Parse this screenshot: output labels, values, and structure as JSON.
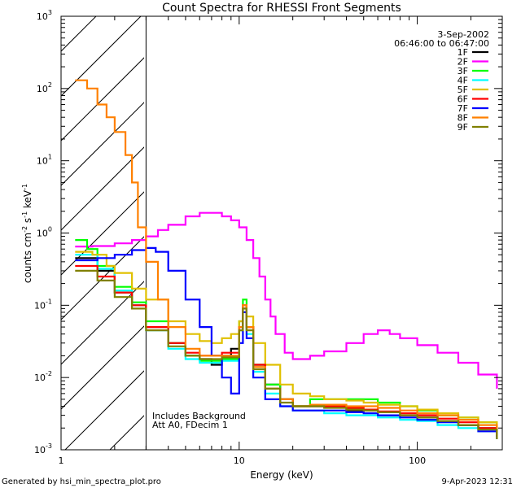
{
  "chart_data": {
    "type": "line",
    "title": "Count Spectra for RHESSI Front Segments",
    "xlabel": "Energy (keV)",
    "ylabel_main": "counts cm",
    "ylabel_exp1": "-2",
    "ylabel_mid": " s",
    "ylabel_exp2": "-1",
    "ylabel_end": " keV",
    "ylabel_exp3": "-1",
    "xscale": "log",
    "yscale": "log",
    "xlim": [
      1,
      300
    ],
    "ylim": [
      0.001,
      1000
    ],
    "hatch_region": [
      1,
      3
    ],
    "x_ticks": [
      {
        "value": 1,
        "label": "1"
      },
      {
        "value": 10,
        "label": "10"
      },
      {
        "value": 100,
        "label": "100"
      }
    ],
    "y_ticks": [
      {
        "value": 0.001,
        "base": "10",
        "exp": "-3"
      },
      {
        "value": 0.01,
        "base": "10",
        "exp": "-2"
      },
      {
        "value": 0.1,
        "base": "10",
        "exp": "-1"
      },
      {
        "value": 1,
        "base": "10",
        "exp": "0"
      },
      {
        "value": 10,
        "base": "10",
        "exp": "1"
      },
      {
        "value": 100,
        "base": "10",
        "exp": "2"
      },
      {
        "value": 1000,
        "base": "10",
        "exp": "3"
      }
    ],
    "date": "3-Sep-2002",
    "time_range": "06:46:00 to 06:47:00",
    "annotations": [
      "Includes Background",
      "Att A0, FDecim 1"
    ],
    "series": [
      {
        "name": "1F",
        "color": "#000000",
        "points": [
          [
            1.2,
            0.45
          ],
          [
            1.6,
            0.3
          ],
          [
            2,
            0.15
          ],
          [
            2.5,
            0.1
          ],
          [
            3,
            0.05
          ],
          [
            4,
            0.03
          ],
          [
            5,
            0.02
          ],
          [
            6,
            0.018
          ],
          [
            7,
            0.015
          ],
          [
            8,
            0.02
          ],
          [
            9,
            0.025
          ],
          [
            10,
            0.05
          ],
          [
            10.5,
            0.09
          ],
          [
            11,
            0.05
          ],
          [
            12,
            0.015
          ],
          [
            14,
            0.008
          ],
          [
            17,
            0.005
          ],
          [
            20,
            0.004
          ],
          [
            25,
            0.004
          ],
          [
            30,
            0.004
          ],
          [
            40,
            0.0035
          ],
          [
            50,
            0.0035
          ],
          [
            60,
            0.003
          ],
          [
            80,
            0.003
          ],
          [
            100,
            0.0028
          ],
          [
            130,
            0.0025
          ],
          [
            170,
            0.0022
          ],
          [
            220,
            0.002
          ],
          [
            280,
            0.0015
          ]
        ]
      },
      {
        "name": "2F",
        "color": "#ff00ff",
        "points": [
          [
            1.2,
            0.65
          ],
          [
            1.5,
            0.66
          ],
          [
            2,
            0.72
          ],
          [
            2.5,
            0.8
          ],
          [
            3,
            0.9
          ],
          [
            3.5,
            1.1
          ],
          [
            4,
            1.3
          ],
          [
            5,
            1.7
          ],
          [
            6,
            1.9
          ],
          [
            7,
            1.9
          ],
          [
            8,
            1.7
          ],
          [
            9,
            1.5
          ],
          [
            10,
            1.2
          ],
          [
            11,
            0.8
          ],
          [
            12,
            0.45
          ],
          [
            13,
            0.25
          ],
          [
            14,
            0.12
          ],
          [
            15,
            0.07
          ],
          [
            16,
            0.04
          ],
          [
            18,
            0.022
          ],
          [
            20,
            0.018
          ],
          [
            25,
            0.02
          ],
          [
            30,
            0.023
          ],
          [
            40,
            0.03
          ],
          [
            50,
            0.04
          ],
          [
            60,
            0.045
          ],
          [
            70,
            0.04
          ],
          [
            80,
            0.035
          ],
          [
            100,
            0.028
          ],
          [
            130,
            0.022
          ],
          [
            170,
            0.016
          ],
          [
            220,
            0.011
          ],
          [
            280,
            0.007
          ]
        ]
      },
      {
        "name": "3F",
        "color": "#00ff00",
        "points": [
          [
            1.2,
            0.8
          ],
          [
            1.4,
            0.6
          ],
          [
            1.6,
            0.35
          ],
          [
            2,
            0.18
          ],
          [
            2.5,
            0.11
          ],
          [
            3,
            0.06
          ],
          [
            4,
            0.03
          ],
          [
            5,
            0.02
          ],
          [
            6,
            0.017
          ],
          [
            8,
            0.018
          ],
          [
            10,
            0.06
          ],
          [
            10.5,
            0.12
          ],
          [
            11,
            0.05
          ],
          [
            12,
            0.015
          ],
          [
            14,
            0.008
          ],
          [
            17,
            0.005
          ],
          [
            20,
            0.004
          ],
          [
            25,
            0.005
          ],
          [
            30,
            0.005
          ],
          [
            40,
            0.005
          ],
          [
            50,
            0.005
          ],
          [
            60,
            0.0045
          ],
          [
            80,
            0.004
          ],
          [
            100,
            0.0035
          ],
          [
            130,
            0.003
          ],
          [
            170,
            0.0028
          ],
          [
            220,
            0.0024
          ],
          [
            280,
            0.0018
          ]
        ]
      },
      {
        "name": "4F",
        "color": "#00ffff",
        "points": [
          [
            1.2,
            0.5
          ],
          [
            1.6,
            0.32
          ],
          [
            2,
            0.16
          ],
          [
            2.5,
            0.1
          ],
          [
            3,
            0.045
          ],
          [
            4,
            0.025
          ],
          [
            5,
            0.018
          ],
          [
            6,
            0.016
          ],
          [
            8,
            0.017
          ],
          [
            10,
            0.045
          ],
          [
            10.5,
            0.08
          ],
          [
            11,
            0.04
          ],
          [
            12,
            0.012
          ],
          [
            14,
            0.006
          ],
          [
            17,
            0.004
          ],
          [
            20,
            0.0035
          ],
          [
            25,
            0.0035
          ],
          [
            30,
            0.0032
          ],
          [
            40,
            0.003
          ],
          [
            50,
            0.003
          ],
          [
            60,
            0.0028
          ],
          [
            80,
            0.0026
          ],
          [
            100,
            0.0025
          ],
          [
            130,
            0.0022
          ],
          [
            170,
            0.002
          ],
          [
            220,
            0.0018
          ],
          [
            280,
            0.0014
          ]
        ]
      },
      {
        "name": "5F",
        "color": "#e0c000",
        "points": [
          [
            1.2,
            0.55
          ],
          [
            1.5,
            0.5
          ],
          [
            1.8,
            0.35
          ],
          [
            2,
            0.28
          ],
          [
            2.5,
            0.17
          ],
          [
            3,
            0.12
          ],
          [
            4,
            0.06
          ],
          [
            5,
            0.04
          ],
          [
            6,
            0.032
          ],
          [
            7,
            0.03
          ],
          [
            8,
            0.035
          ],
          [
            9,
            0.04
          ],
          [
            10,
            0.06
          ],
          [
            10.5,
            0.1
          ],
          [
            11,
            0.07
          ],
          [
            12,
            0.03
          ],
          [
            14,
            0.015
          ],
          [
            17,
            0.008
          ],
          [
            20,
            0.006
          ],
          [
            25,
            0.0055
          ],
          [
            30,
            0.005
          ],
          [
            40,
            0.0048
          ],
          [
            50,
            0.0045
          ],
          [
            60,
            0.0042
          ],
          [
            80,
            0.004
          ],
          [
            100,
            0.0036
          ],
          [
            130,
            0.0032
          ],
          [
            170,
            0.0028
          ],
          [
            220,
            0.0024
          ],
          [
            280,
            0.0018
          ]
        ]
      },
      {
        "name": "6F",
        "color": "#ff0000",
        "points": [
          [
            1.2,
            0.35
          ],
          [
            1.6,
            0.25
          ],
          [
            2,
            0.15
          ],
          [
            2.5,
            0.1
          ],
          [
            3,
            0.05
          ],
          [
            4,
            0.03
          ],
          [
            5,
            0.022
          ],
          [
            6,
            0.02
          ],
          [
            8,
            0.022
          ],
          [
            10,
            0.05
          ],
          [
            10.5,
            0.1
          ],
          [
            11,
            0.05
          ],
          [
            12,
            0.015
          ],
          [
            14,
            0.007
          ],
          [
            17,
            0.005
          ],
          [
            20,
            0.004
          ],
          [
            25,
            0.004
          ],
          [
            30,
            0.004
          ],
          [
            40,
            0.0038
          ],
          [
            50,
            0.0036
          ],
          [
            60,
            0.0034
          ],
          [
            80,
            0.0032
          ],
          [
            100,
            0.003
          ],
          [
            130,
            0.0027
          ],
          [
            170,
            0.0024
          ],
          [
            220,
            0.002
          ],
          [
            280,
            0.0015
          ]
        ]
      },
      {
        "name": "7F",
        "color": "#0000ff",
        "points": [
          [
            1.2,
            0.42
          ],
          [
            1.6,
            0.45
          ],
          [
            2,
            0.5
          ],
          [
            2.5,
            0.58
          ],
          [
            3,
            0.62
          ],
          [
            3.4,
            0.55
          ],
          [
            4,
            0.3
          ],
          [
            5,
            0.12
          ],
          [
            6,
            0.05
          ],
          [
            7,
            0.02
          ],
          [
            8,
            0.01
          ],
          [
            9,
            0.006
          ],
          [
            10,
            0.03
          ],
          [
            10.5,
            0.08
          ],
          [
            11,
            0.035
          ],
          [
            12,
            0.01
          ],
          [
            14,
            0.005
          ],
          [
            17,
            0.004
          ],
          [
            20,
            0.0035
          ],
          [
            25,
            0.0035
          ],
          [
            30,
            0.0035
          ],
          [
            40,
            0.0033
          ],
          [
            50,
            0.0032
          ],
          [
            60,
            0.003
          ],
          [
            80,
            0.0028
          ],
          [
            100,
            0.0026
          ],
          [
            130,
            0.0024
          ],
          [
            170,
            0.0022
          ],
          [
            220,
            0.0018
          ],
          [
            280,
            0.0014
          ]
        ]
      },
      {
        "name": "8F",
        "color": "#ff8000",
        "points": [
          [
            1.2,
            130
          ],
          [
            1.4,
            100
          ],
          [
            1.6,
            60
          ],
          [
            1.8,
            40
          ],
          [
            2,
            25
          ],
          [
            2.3,
            12
          ],
          [
            2.5,
            5
          ],
          [
            2.7,
            1.2
          ],
          [
            3,
            0.4
          ],
          [
            3.5,
            0.12
          ],
          [
            4,
            0.05
          ],
          [
            5,
            0.025
          ],
          [
            6,
            0.02
          ],
          [
            8,
            0.02
          ],
          [
            10,
            0.05
          ],
          [
            10.5,
            0.1
          ],
          [
            11,
            0.05
          ],
          [
            12,
            0.014
          ],
          [
            14,
            0.007
          ],
          [
            17,
            0.005
          ],
          [
            20,
            0.004
          ],
          [
            25,
            0.0042
          ],
          [
            30,
            0.0042
          ],
          [
            40,
            0.004
          ],
          [
            50,
            0.004
          ],
          [
            60,
            0.0038
          ],
          [
            80,
            0.0035
          ],
          [
            100,
            0.0032
          ],
          [
            130,
            0.003
          ],
          [
            170,
            0.0026
          ],
          [
            220,
            0.0022
          ],
          [
            280,
            0.0016
          ]
        ]
      },
      {
        "name": "9F",
        "color": "#808000",
        "points": [
          [
            1.2,
            0.3
          ],
          [
            1.6,
            0.22
          ],
          [
            2,
            0.13
          ],
          [
            2.5,
            0.09
          ],
          [
            3,
            0.045
          ],
          [
            4,
            0.027
          ],
          [
            5,
            0.02
          ],
          [
            6,
            0.018
          ],
          [
            8,
            0.019
          ],
          [
            10,
            0.045
          ],
          [
            10.5,
            0.09
          ],
          [
            11,
            0.045
          ],
          [
            12,
            0.013
          ],
          [
            14,
            0.007
          ],
          [
            17,
            0.0045
          ],
          [
            20,
            0.004
          ],
          [
            25,
            0.004
          ],
          [
            30,
            0.0038
          ],
          [
            40,
            0.0036
          ],
          [
            50,
            0.0035
          ],
          [
            60,
            0.0033
          ],
          [
            80,
            0.003
          ],
          [
            100,
            0.0028
          ],
          [
            130,
            0.0025
          ],
          [
            170,
            0.0022
          ],
          [
            220,
            0.0019
          ],
          [
            280,
            0.0014
          ]
        ]
      }
    ]
  },
  "footer": {
    "generated": "Generated by hsi_min_spectra_plot.pro",
    "timestamp": "9-Apr-2023 12:31"
  }
}
